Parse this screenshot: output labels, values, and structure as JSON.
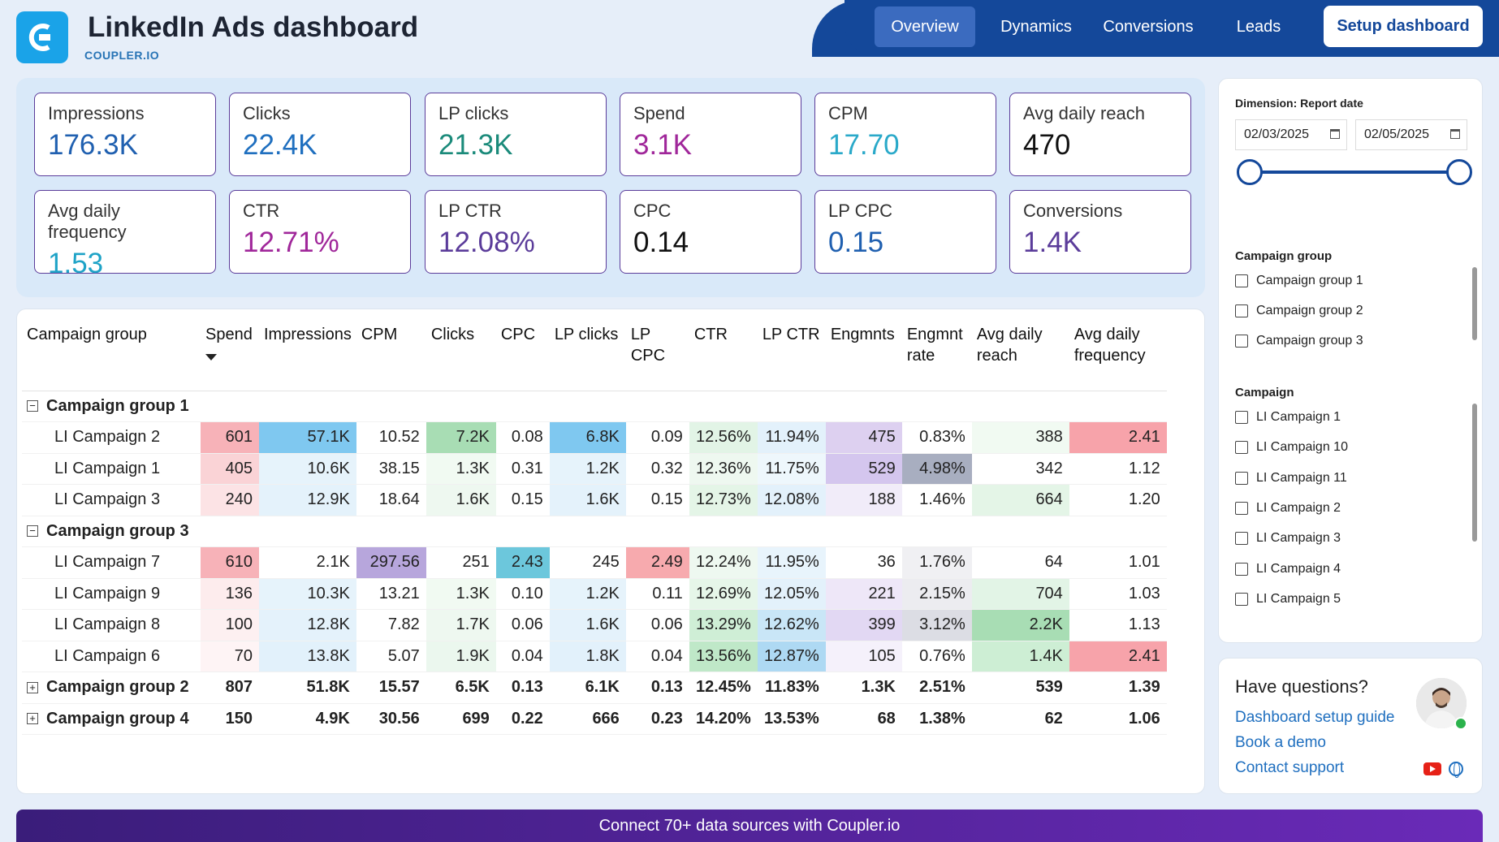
{
  "header": {
    "title": "LinkedIn Ads dashboard",
    "subtitle": "COUPLER.IO",
    "tabs": [
      "Overview",
      "Dynamics",
      "Conversions",
      "Leads"
    ],
    "setup_label": "Setup dashboard"
  },
  "kpis": [
    {
      "label": "Impressions",
      "value": "176.3K",
      "color": "#2060b0"
    },
    {
      "label": "Clicks",
      "value": "22.4K",
      "color": "#1f6fbf"
    },
    {
      "label": "LP clicks",
      "value": "21.3K",
      "color": "#1a8a7a"
    },
    {
      "label": "Spend",
      "value": "3.1K",
      "color": "#a0279a"
    },
    {
      "label": "CPM",
      "value": "17.70",
      "color": "#2aa9c9"
    },
    {
      "label": "Avg daily reach",
      "value": "470",
      "color": "#111111"
    },
    {
      "label": "Avg daily frequency",
      "value": "1.53",
      "color": "#1fa3c7"
    },
    {
      "label": "CTR",
      "value": "12.71%",
      "color": "#a0279a"
    },
    {
      "label": "LP CTR",
      "value": "12.08%",
      "color": "#5b3c9a"
    },
    {
      "label": "CPC",
      "value": "0.14",
      "color": "#111111"
    },
    {
      "label": "LP CPC",
      "value": "0.15",
      "color": "#2060b0"
    },
    {
      "label": "Conversions",
      "value": "1.4K",
      "color": "#5b3c9a"
    }
  ],
  "table": {
    "columns": [
      "Campaign group",
      "Spend",
      "Impressions",
      "CPM",
      "Clicks",
      "CPC",
      "LP clicks",
      "LP CPC",
      "CTR",
      "LP CTR",
      "Engmnts",
      "Engmnt rate",
      "Avg daily reach",
      "Avg daily frequency"
    ],
    "rows": [
      {
        "type": "group",
        "expanded": true,
        "cells": [
          "Campaign group 1"
        ]
      },
      {
        "type": "item",
        "cells": [
          "LI Campaign 2",
          "601",
          "57.1K",
          "10.52",
          "7.2K",
          "0.08",
          "6.8K",
          "0.09",
          "12.56%",
          "11.94%",
          "475",
          "0.83%",
          "388",
          "2.41"
        ],
        "bg": [
          "",
          "#f7b2b8",
          "#7fc8f0",
          "",
          "#a8ddb4",
          "",
          "#7fc8f0",
          "",
          "#e2f4e6",
          "#e3f1fb",
          "#ddd0f0",
          "",
          "#f1faf2",
          "#f7a3aa"
        ]
      },
      {
        "type": "item",
        "cells": [
          "LI Campaign 1",
          "405",
          "10.6K",
          "38.15",
          "1.3K",
          "0.31",
          "1.2K",
          "0.32",
          "12.36%",
          "11.75%",
          "529",
          "4.98%",
          "342",
          "1.12"
        ],
        "bg": [
          "",
          "#fad3d6",
          "#e6f3fb",
          "",
          "#f1faf2",
          "",
          "#e6f3fb",
          "",
          "#eef8f0",
          "#eef7fc",
          "#d4c6ee",
          "#a8aec0",
          "",
          ""
        ]
      },
      {
        "type": "item",
        "cells": [
          "LI Campaign 3",
          "240",
          "12.9K",
          "18.64",
          "1.6K",
          "0.15",
          "1.6K",
          "0.15",
          "12.73%",
          "12.08%",
          "188",
          "1.46%",
          "664",
          "1.20"
        ],
        "bg": [
          "",
          "#fce3e5",
          "#e4f2fb",
          "",
          "#eef8f0",
          "",
          "#e4f2fb",
          "",
          "#e4f5e7",
          "#e3f1fb",
          "#f1ecf9",
          "",
          "#e4f5e7",
          ""
        ]
      },
      {
        "type": "group",
        "expanded": true,
        "cells": [
          "Campaign group 3"
        ]
      },
      {
        "type": "item",
        "cells": [
          "LI Campaign 7",
          "610",
          "2.1K",
          "297.56",
          "251",
          "2.43",
          "245",
          "2.49",
          "12.24%",
          "11.95%",
          "36",
          "1.76%",
          "64",
          "1.01"
        ],
        "bg": [
          "",
          "#f7b2b8",
          "",
          "#b7a6dc",
          "",
          "#6cc7dc",
          "",
          "#f7aaae",
          "#eef8f0",
          "#e8f4fc",
          "",
          "#f0f0f3",
          "",
          ""
        ]
      },
      {
        "type": "item",
        "cells": [
          "LI Campaign 9",
          "136",
          "10.3K",
          "13.21",
          "1.3K",
          "0.10",
          "1.2K",
          "0.11",
          "12.69%",
          "12.05%",
          "221",
          "2.15%",
          "704",
          "1.03"
        ],
        "bg": [
          "",
          "#fdeced",
          "#e6f3fb",
          "",
          "#f1faf2",
          "",
          "#e6f3fb",
          "",
          "#e6f6e9",
          "#e3f1fb",
          "#eee7f8",
          "#ececf0",
          "#e2f4e6",
          ""
        ]
      },
      {
        "type": "item",
        "cells": [
          "LI Campaign 8",
          "100",
          "12.8K",
          "7.82",
          "1.7K",
          "0.06",
          "1.6K",
          "0.06",
          "13.29%",
          "12.62%",
          "399",
          "3.12%",
          "2.2K",
          "1.13"
        ],
        "bg": [
          "",
          "#fdf0f1",
          "#e4f2fb",
          "",
          "#eef8f0",
          "",
          "#e4f2fb",
          "",
          "#cfeed6",
          "#c9e6f7",
          "#e2d8f3",
          "#dcdde4",
          "#a8ddb4",
          ""
        ]
      },
      {
        "type": "item",
        "cells": [
          "LI Campaign 6",
          "70",
          "13.8K",
          "5.07",
          "1.9K",
          "0.04",
          "1.8K",
          "0.04",
          "13.56%",
          "12.87%",
          "105",
          "0.76%",
          "1.4K",
          "2.41"
        ],
        "bg": [
          "",
          "#fef4f5",
          "#e2f1fb",
          "",
          "#ebf7ee",
          "",
          "#e2f1fb",
          "",
          "#bfe8c8",
          "#aed9f3",
          "#f5f1fb",
          "",
          "#cdeed4",
          "#f7a3aa"
        ]
      },
      {
        "type": "group",
        "expanded": false,
        "cells": [
          "Campaign group 2",
          "807",
          "51.8K",
          "15.57",
          "6.5K",
          "0.13",
          "6.1K",
          "0.13",
          "12.45%",
          "11.83%",
          "1.3K",
          "2.51%",
          "539",
          "1.39"
        ]
      },
      {
        "type": "group",
        "expanded": false,
        "cells": [
          "Campaign group 4",
          "150",
          "4.9K",
          "30.56",
          "699",
          "0.22",
          "666",
          "0.23",
          "14.20%",
          "13.53%",
          "68",
          "1.38%",
          "62",
          "1.06"
        ]
      }
    ]
  },
  "filters": {
    "dimension_label": "Dimension: Report date",
    "date_from": "02/03/2025",
    "date_to": "02/05/2025",
    "campaign_group_label": "Campaign group",
    "campaign_groups": [
      "Campaign group 1",
      "Campaign group 2",
      "Campaign group 3"
    ],
    "campaign_label": "Campaign",
    "campaigns": [
      "LI Campaign 1",
      "LI Campaign 10",
      "LI Campaign 11",
      "LI Campaign 2",
      "LI Campaign 3",
      "LI Campaign 4",
      "LI Campaign 5"
    ]
  },
  "questions": {
    "title": "Have questions?",
    "links": [
      "Dashboard setup guide",
      "Book a demo",
      "Contact support"
    ]
  },
  "footer": {
    "text": "Connect 70+ data sources with Coupler.io"
  }
}
